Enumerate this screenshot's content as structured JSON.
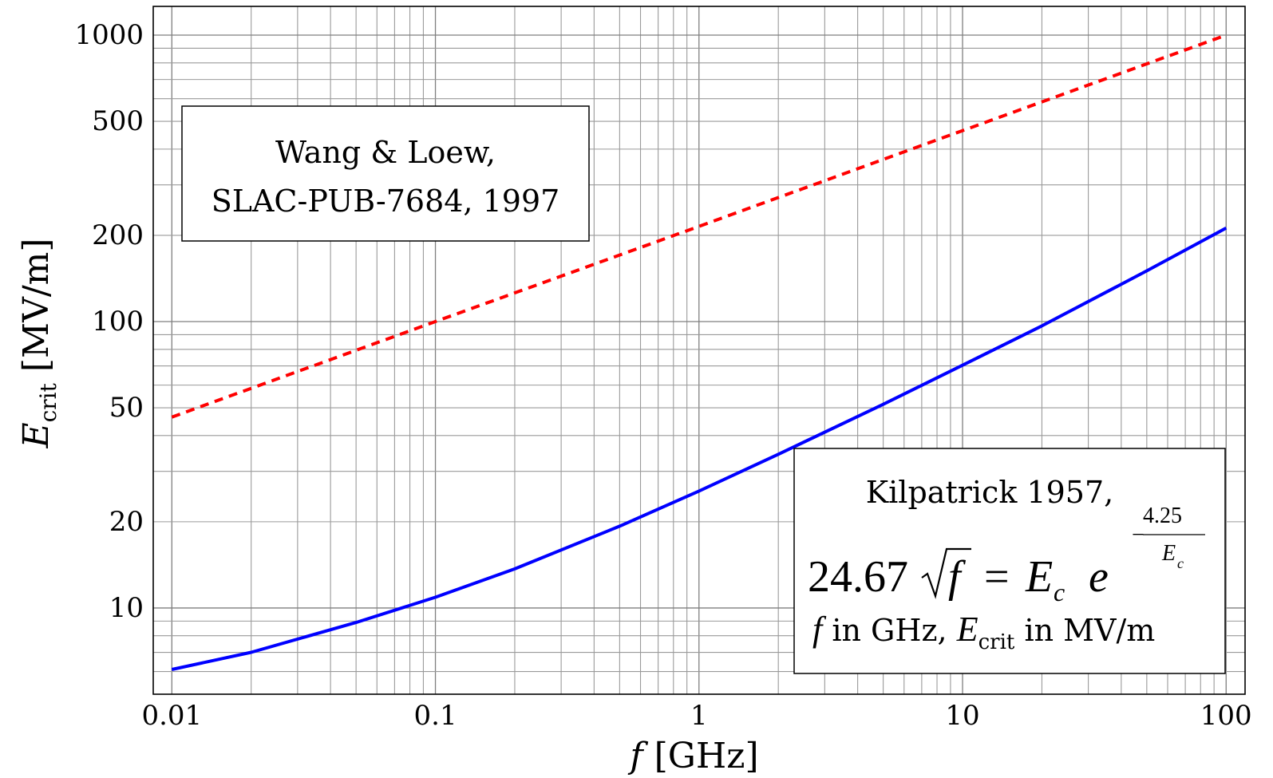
{
  "chart_data": {
    "type": "line",
    "xlabel": "f [GHz]",
    "ylabel": "E_crit [MV/m]",
    "xscale": "log",
    "yscale": "log",
    "xlim": [
      0.0085,
      118
    ],
    "ylim": [
      5,
      1260
    ],
    "grid": true,
    "x_ticks": [
      0.01,
      0.1,
      1,
      10,
      100
    ],
    "x_tick_labels": [
      "0.01",
      "0.1",
      "1",
      "10",
      "100"
    ],
    "y_ticks": [
      10,
      20,
      50,
      100,
      200,
      500,
      1000
    ],
    "y_tick_labels": [
      "10",
      "20",
      "50",
      "100",
      "200",
      "500",
      "1000"
    ],
    "series": [
      {
        "name": "Wang & Loew, SLAC-PUB-7684, 1997",
        "style": "dashed",
        "color": "#ff0000",
        "x": [
          0.01,
          0.1,
          1,
          10,
          100
        ],
        "y": [
          46.4,
          100,
          215,
          464,
          1000
        ]
      },
      {
        "name": "Kilpatrick 1957",
        "style": "solid",
        "color": "#0000ff",
        "x": [
          0.01,
          0.02,
          0.05,
          0.1,
          0.2,
          0.5,
          1,
          2,
          5,
          10,
          20,
          50,
          100
        ],
        "y": [
          6.1,
          7.0,
          8.9,
          10.9,
          13.7,
          19.3,
          25.6,
          34.4,
          51.4,
          70.4,
          96.6,
          150.4,
          212
        ]
      }
    ],
    "annotations": {
      "wang": {
        "line1": "Wang & Loew,",
        "line2": "SLAC-PUB-7684, 1997"
      },
      "kilpatrick": {
        "title": "Kilpatrick 1957,",
        "formula_coef": "24.67",
        "formula_sqrt_var": "f",
        "formula_equals": "=",
        "formula_E": "E",
        "formula_sub_c": "c",
        "formula_e": "e",
        "formula_exp_num": "4.25",
        "formula_exp_den_E": "E",
        "formula_exp_den_sub": "c",
        "formula_exp_minus": "−",
        "units_f": "f",
        "units_in_ghz": " in GHz, ",
        "units_E": "E",
        "units_crit": "crit",
        "units_in_mvm": " in MV/m"
      }
    },
    "xlabel_parts": {
      "var": "f",
      "unit": " [GHz]"
    },
    "ylabel_parts": {
      "var": "E",
      "sub": "crit",
      "unit": " [MV/m]"
    }
  }
}
